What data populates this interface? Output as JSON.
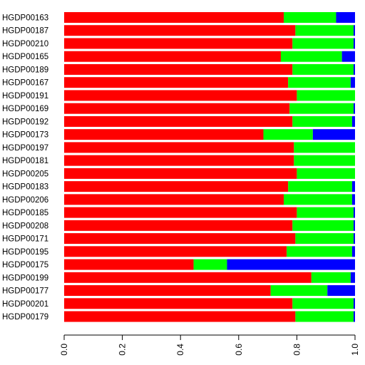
{
  "chart_data": {
    "type": "bar",
    "orientation": "horizontal",
    "stacked": true,
    "categories": [
      "HGDP00163",
      "HGDP00187",
      "HGDP00210",
      "HGDP00165",
      "HGDP00189",
      "HGDP00167",
      "HGDP00191",
      "HGDP00169",
      "HGDP00192",
      "HGDP00173",
      "HGDP00197",
      "HGDP00181",
      "HGDP00205",
      "HGDP00183",
      "HGDP00206",
      "HGDP00185",
      "HGDP00208",
      "HGDP00171",
      "HGDP00195",
      "HGDP00175",
      "HGDP00199",
      "HGDP00177",
      "HGDP00201",
      "HGDP00179"
    ],
    "series": [
      {
        "color": "#ff0000",
        "values": [
          0.755,
          0.795,
          0.785,
          0.745,
          0.785,
          0.77,
          0.8,
          0.775,
          0.785,
          0.685,
          0.79,
          0.79,
          0.8,
          0.77,
          0.755,
          0.8,
          0.785,
          0.795,
          0.765,
          0.445,
          0.85,
          0.71,
          0.785,
          0.795
        ]
      },
      {
        "color": "#00ff00",
        "values": [
          0.18,
          0.2,
          0.21,
          0.21,
          0.21,
          0.215,
          0.2,
          0.22,
          0.205,
          0.17,
          0.21,
          0.21,
          0.2,
          0.22,
          0.235,
          0.195,
          0.21,
          0.2,
          0.225,
          0.115,
          0.135,
          0.195,
          0.21,
          0.2
        ]
      },
      {
        "color": "#0000ff",
        "values": [
          0.065,
          0.005,
          0.005,
          0.045,
          0.005,
          0.015,
          0.0,
          0.005,
          0.01,
          0.145,
          0.0,
          0.0,
          0.0,
          0.01,
          0.01,
          0.005,
          0.005,
          0.005,
          0.01,
          0.44,
          0.015,
          0.095,
          0.005,
          0.005
        ]
      }
    ],
    "xlim": [
      0,
      1
    ],
    "xticks": [
      "0.0",
      "0.2",
      "0.4",
      "0.6",
      "0.8",
      "1.0"
    ],
    "xtick_values": [
      0,
      0.2,
      0.4,
      0.6,
      0.8,
      1.0
    ],
    "title": "",
    "xlabel": "",
    "ylabel": "",
    "grid": false,
    "legend": "none"
  }
}
